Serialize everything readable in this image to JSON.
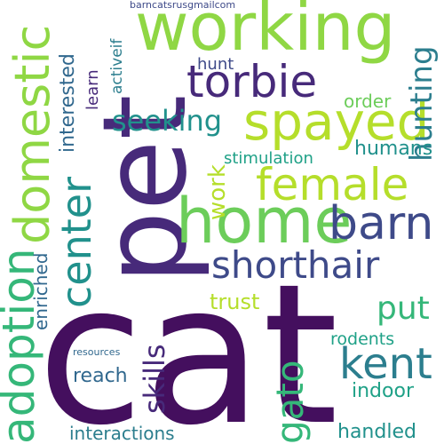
{
  "colors": {
    "background": "#ffffff",
    "deep_purple": "#440f5e",
    "purple": "#472a7a",
    "indigo": "#3e4a89",
    "slate_blue": "#31688e",
    "blue_teal": "#2c7e8e",
    "teal": "#21918c",
    "sea_green": "#1fa187",
    "green": "#35b779",
    "light_green": "#6ccd5a",
    "lime": "#8fd744",
    "yellow_green": "#b5de2b"
  },
  "words": [
    {
      "text": "cat"
    },
    {
      "text": "pet"
    },
    {
      "text": "working"
    },
    {
      "text": "home"
    },
    {
      "text": "adoption"
    },
    {
      "text": "domestic"
    },
    {
      "text": "spayed"
    },
    {
      "text": "torbie"
    },
    {
      "text": "female"
    },
    {
      "text": "shorthair"
    },
    {
      "text": "barn"
    },
    {
      "text": "center"
    },
    {
      "text": "kent"
    },
    {
      "text": "gato"
    },
    {
      "text": "hunting"
    },
    {
      "text": "seeking"
    },
    {
      "text": "work"
    },
    {
      "text": "skills"
    },
    {
      "text": "put"
    },
    {
      "text": "interested"
    },
    {
      "text": "activeif"
    },
    {
      "text": "learn"
    },
    {
      "text": "hunt"
    },
    {
      "text": "order"
    },
    {
      "text": "humans"
    },
    {
      "text": "stimulation"
    },
    {
      "text": "enriched"
    },
    {
      "text": "trust"
    },
    {
      "text": "rodents"
    },
    {
      "text": "reach"
    },
    {
      "text": "indoor"
    },
    {
      "text": "interactions"
    },
    {
      "text": "handled"
    },
    {
      "text": "resources"
    },
    {
      "text": "barncatsrusgmailcom"
    }
  ]
}
